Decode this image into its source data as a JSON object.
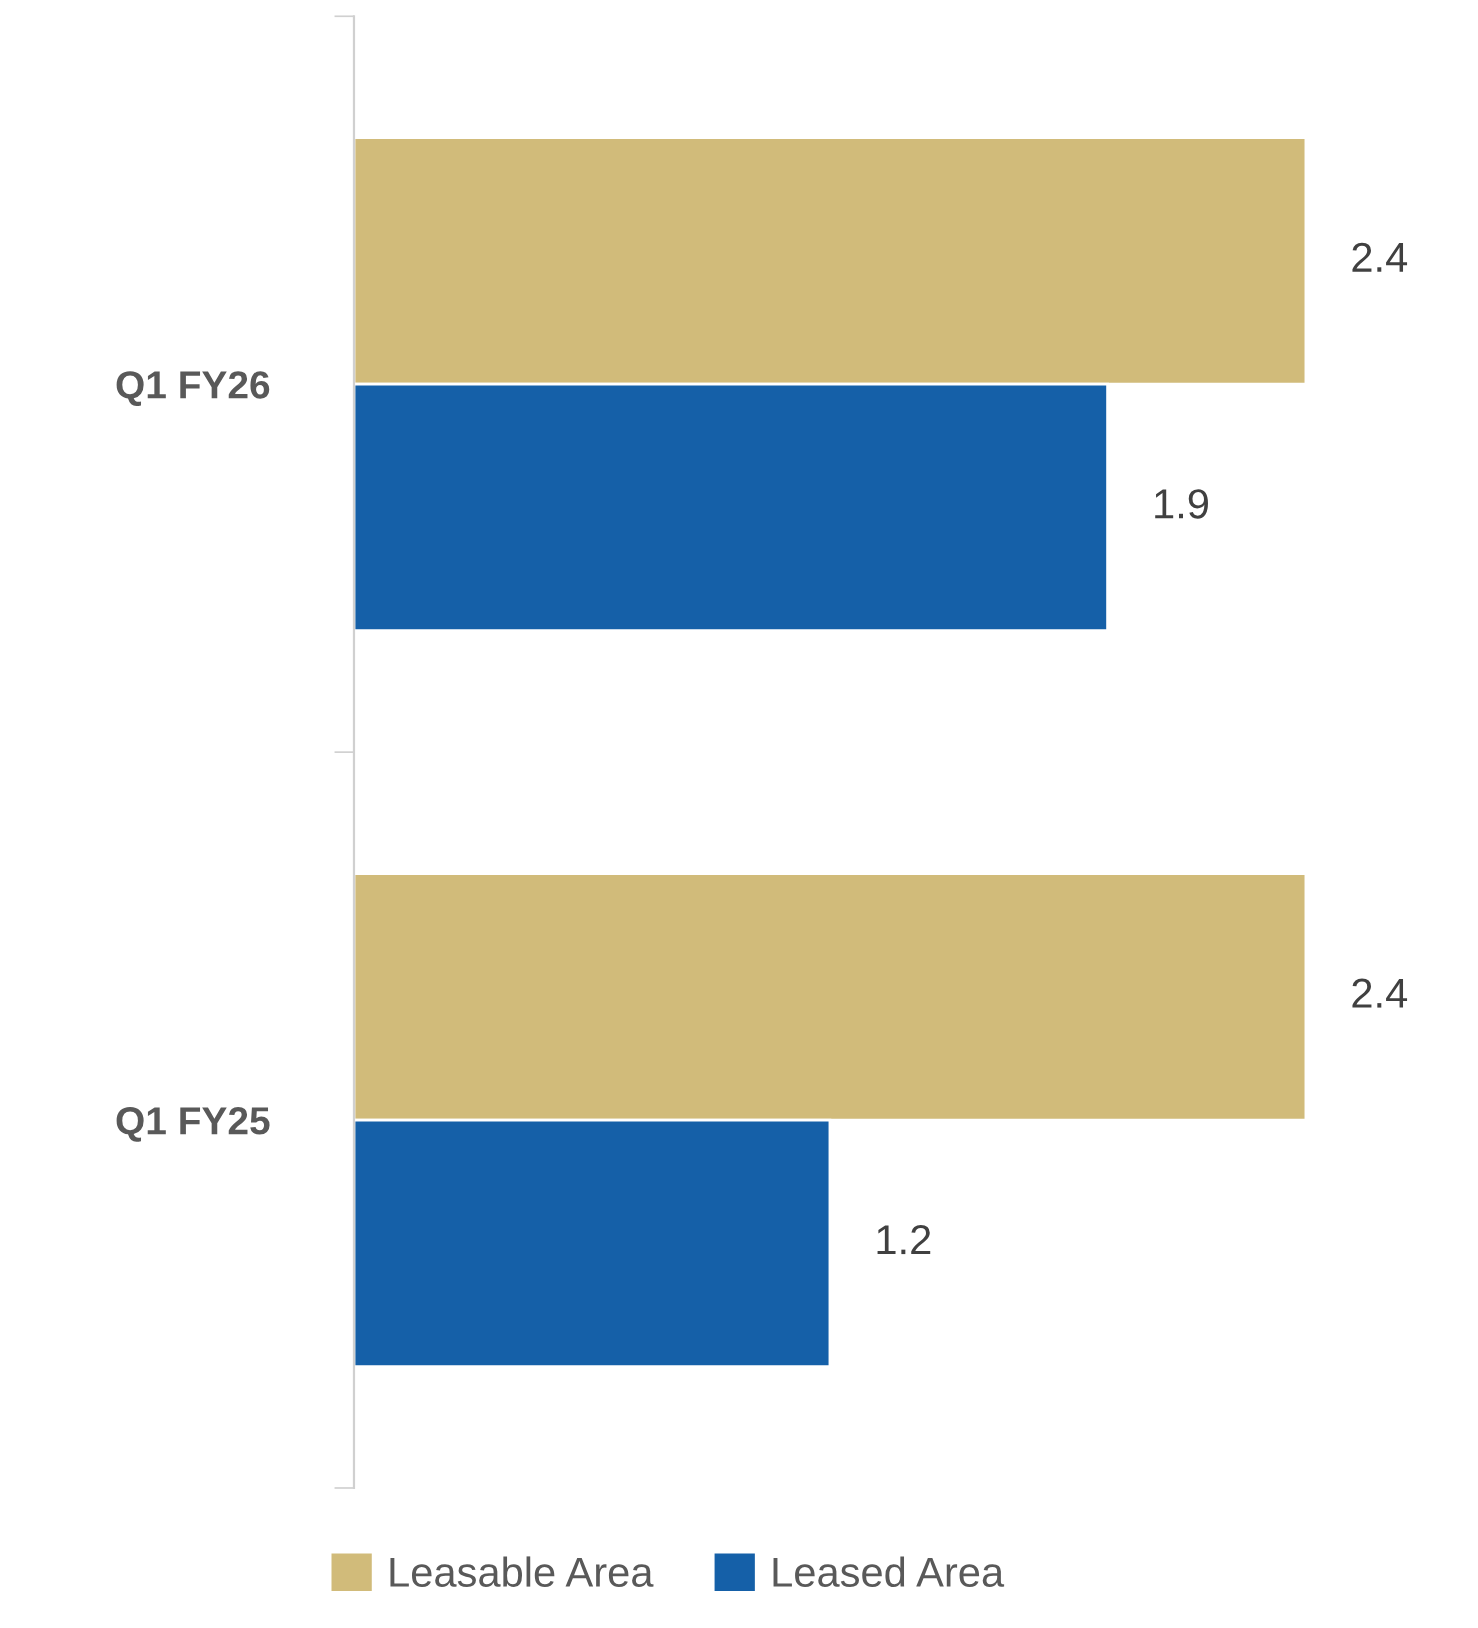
{
  "chart_data": {
    "type": "bar",
    "orientation": "horizontal",
    "categories": [
      "Q1 FY26",
      "Q1 FY25"
    ],
    "series": [
      {
        "name": "Leasable Area",
        "color": "#d1bb7a",
        "values": [
          2.4,
          2.4
        ]
      },
      {
        "name": "Leased Area",
        "color": "#1560a8",
        "values": [
          1.9,
          1.2
        ]
      }
    ],
    "data_labels": true,
    "legend": "bottom",
    "grid": false
  }
}
